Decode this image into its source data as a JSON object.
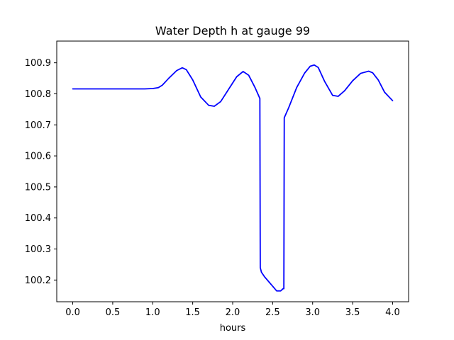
{
  "chart_data": {
    "type": "line",
    "title": "Water Depth h at gauge 99",
    "xlabel": "hours",
    "ylabel": "",
    "xlim": [
      -0.2,
      4.2
    ],
    "ylim": [
      100.13,
      100.97
    ],
    "x_ticks": [
      0.0,
      0.5,
      1.0,
      1.5,
      2.0,
      2.5,
      3.0,
      3.5,
      4.0
    ],
    "x_tick_labels": [
      "0.0",
      "0.5",
      "1.0",
      "1.5",
      "2.0",
      "2.5",
      "3.0",
      "3.5",
      "4.0"
    ],
    "y_ticks": [
      100.2,
      100.3,
      100.4,
      100.5,
      100.6,
      100.7,
      100.8,
      100.9
    ],
    "y_tick_labels": [
      "100.2",
      "100.3",
      "100.4",
      "100.5",
      "100.6",
      "100.7",
      "100.8",
      "100.9"
    ],
    "grid": false,
    "series": [
      {
        "color": "#0000ff",
        "x": [
          0.0,
          0.25,
          0.5,
          0.75,
          0.9,
          1.0,
          1.07,
          1.12,
          1.2,
          1.3,
          1.37,
          1.42,
          1.5,
          1.6,
          1.7,
          1.77,
          1.85,
          1.95,
          2.05,
          2.13,
          2.2,
          2.28,
          2.34,
          2.345,
          2.36,
          2.4,
          2.45,
          2.5,
          2.55,
          2.6,
          2.63,
          2.64,
          2.645,
          2.7,
          2.8,
          2.9,
          2.97,
          3.02,
          3.07,
          3.15,
          3.25,
          3.32,
          3.4,
          3.5,
          3.6,
          3.7,
          3.75,
          3.82,
          3.9,
          4.0
        ],
        "y": [
          100.816,
          100.816,
          100.816,
          100.816,
          100.816,
          100.817,
          100.82,
          100.828,
          100.85,
          100.875,
          100.884,
          100.878,
          100.845,
          100.79,
          100.763,
          100.76,
          100.775,
          100.815,
          100.855,
          100.872,
          100.86,
          100.82,
          100.785,
          100.24,
          100.225,
          100.21,
          100.195,
          100.18,
          100.165,
          100.165,
          100.172,
          100.172,
          100.723,
          100.755,
          100.82,
          100.867,
          100.889,
          100.893,
          100.885,
          100.84,
          100.795,
          100.792,
          100.81,
          100.842,
          100.866,
          100.873,
          100.868,
          100.845,
          100.805,
          100.778
        ]
      }
    ]
  }
}
